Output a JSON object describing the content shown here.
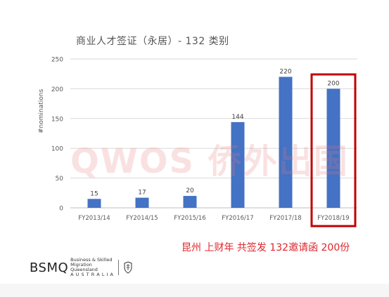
{
  "chart_data": {
    "type": "bar",
    "title": "商业人才签证（永居）- 132 类别",
    "ylabel": "#nominations",
    "xlabel": "",
    "categories": [
      "FY2013/14",
      "FY2014/15",
      "FY2015/16",
      "FY2016/17",
      "FY2017/18",
      "FY2018/19"
    ],
    "values": [
      15,
      17,
      20,
      144,
      220,
      200
    ],
    "ylim": [
      0,
      250
    ],
    "yticks": [
      0,
      50,
      100,
      150,
      200,
      250
    ],
    "grid": true,
    "bar_color": "#4472c4",
    "highlight_category": "FY2018/19",
    "highlight_color": "#c00000"
  },
  "watermark": "QWOS 侨外出国",
  "annotation": "昆州 上财年 共签发 132邀请函 200份",
  "logo": {
    "main": "BSMQ",
    "sub_line1": "Business & Skilled",
    "sub_line2": "Migration Queensland",
    "sub_line3": "A U S T R A L I A"
  }
}
